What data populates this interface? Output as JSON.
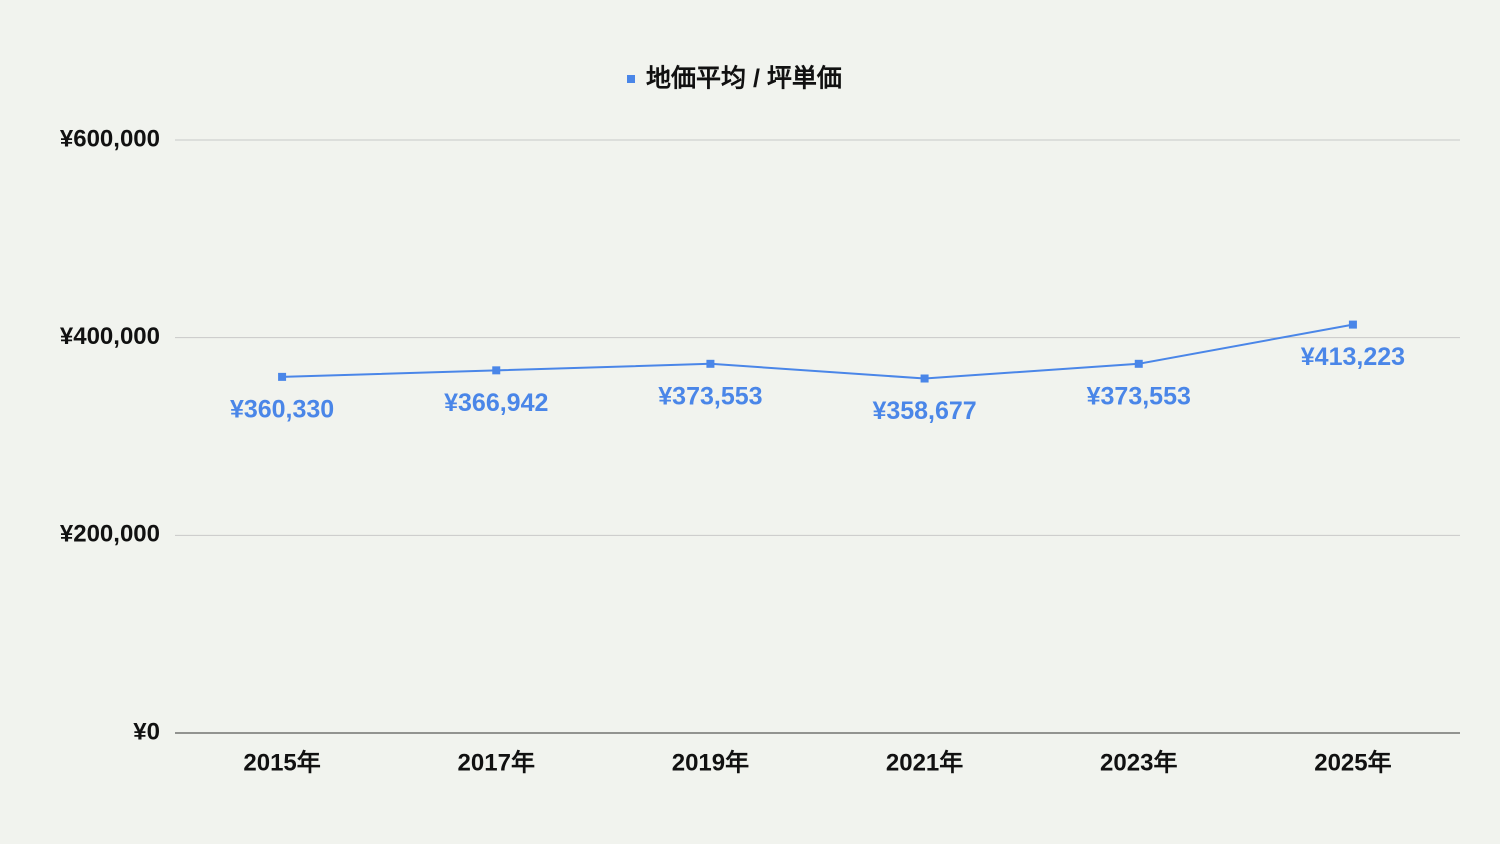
{
  "chart_data": {
    "type": "line",
    "categories": [
      "2015年",
      "2017年",
      "2019年",
      "2021年",
      "2023年",
      "2025年"
    ],
    "series": [
      {
        "name": "地価平均 / 坪単価",
        "color": "#4a86e8",
        "values": [
          360330,
          366942,
          373553,
          358677,
          373553,
          413223
        ],
        "value_labels": [
          "¥360,330",
          "¥366,942",
          "¥373,553",
          "¥358,677",
          "¥373,553",
          "¥413,223"
        ]
      }
    ],
    "ylim": [
      0,
      600000
    ],
    "yticks": [
      {
        "value": 0,
        "label": "¥0"
      },
      {
        "value": 200000,
        "label": "¥200,000"
      },
      {
        "value": 400000,
        "label": "¥400,000"
      },
      {
        "value": 600000,
        "label": "¥600,000"
      }
    ],
    "grid": true,
    "legend": "top"
  }
}
